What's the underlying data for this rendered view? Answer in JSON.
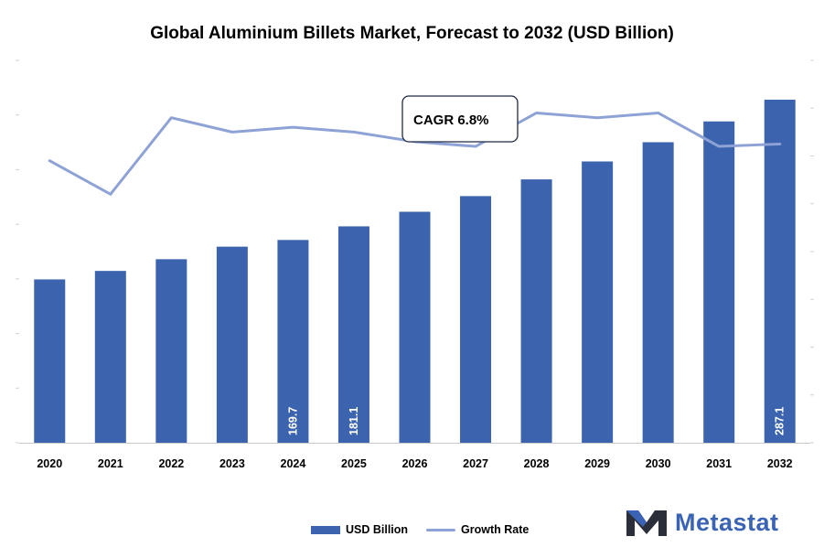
{
  "chart_data": {
    "type": "bar",
    "title": "Global Aluminium Billets Market, Forecast to 2032 (USD Billion)",
    "categories": [
      "2020",
      "2021",
      "2022",
      "2023",
      "2024",
      "2025",
      "2026",
      "2027",
      "2028",
      "2029",
      "2030",
      "2031",
      "2032"
    ],
    "series": [
      {
        "name": "USD Billion",
        "type": "bar",
        "color": "#3c64ae",
        "values": [
          136.7,
          143.8,
          153.6,
          164.1,
          169.7,
          181.1,
          193.3,
          206.4,
          220.4,
          235.4,
          251.5,
          268.9,
          287.1
        ],
        "data_labels": [
          "",
          "",
          "",
          "",
          "169.7",
          "181.1",
          "",
          "",
          "",
          "",
          "",
          "",
          "287.1"
        ]
      },
      {
        "name": "Growth Rate",
        "type": "line",
        "color": "#8ea2d6",
        "values": [
          5.9,
          5.2,
          6.8,
          6.5,
          6.6,
          6.5,
          6.3,
          6.2,
          6.9,
          6.8,
          6.9,
          6.2,
          6.25
        ]
      }
    ],
    "ylim": [
      0,
      320
    ],
    "y2lim": [
      0,
      8
    ],
    "annotation": "CAGR 6.8%",
    "legend_position": "bottom",
    "grid": false
  },
  "brand": {
    "name": "Metastat",
    "color": "#3a63b5",
    "icon": "metastat-m-logo-icon"
  }
}
